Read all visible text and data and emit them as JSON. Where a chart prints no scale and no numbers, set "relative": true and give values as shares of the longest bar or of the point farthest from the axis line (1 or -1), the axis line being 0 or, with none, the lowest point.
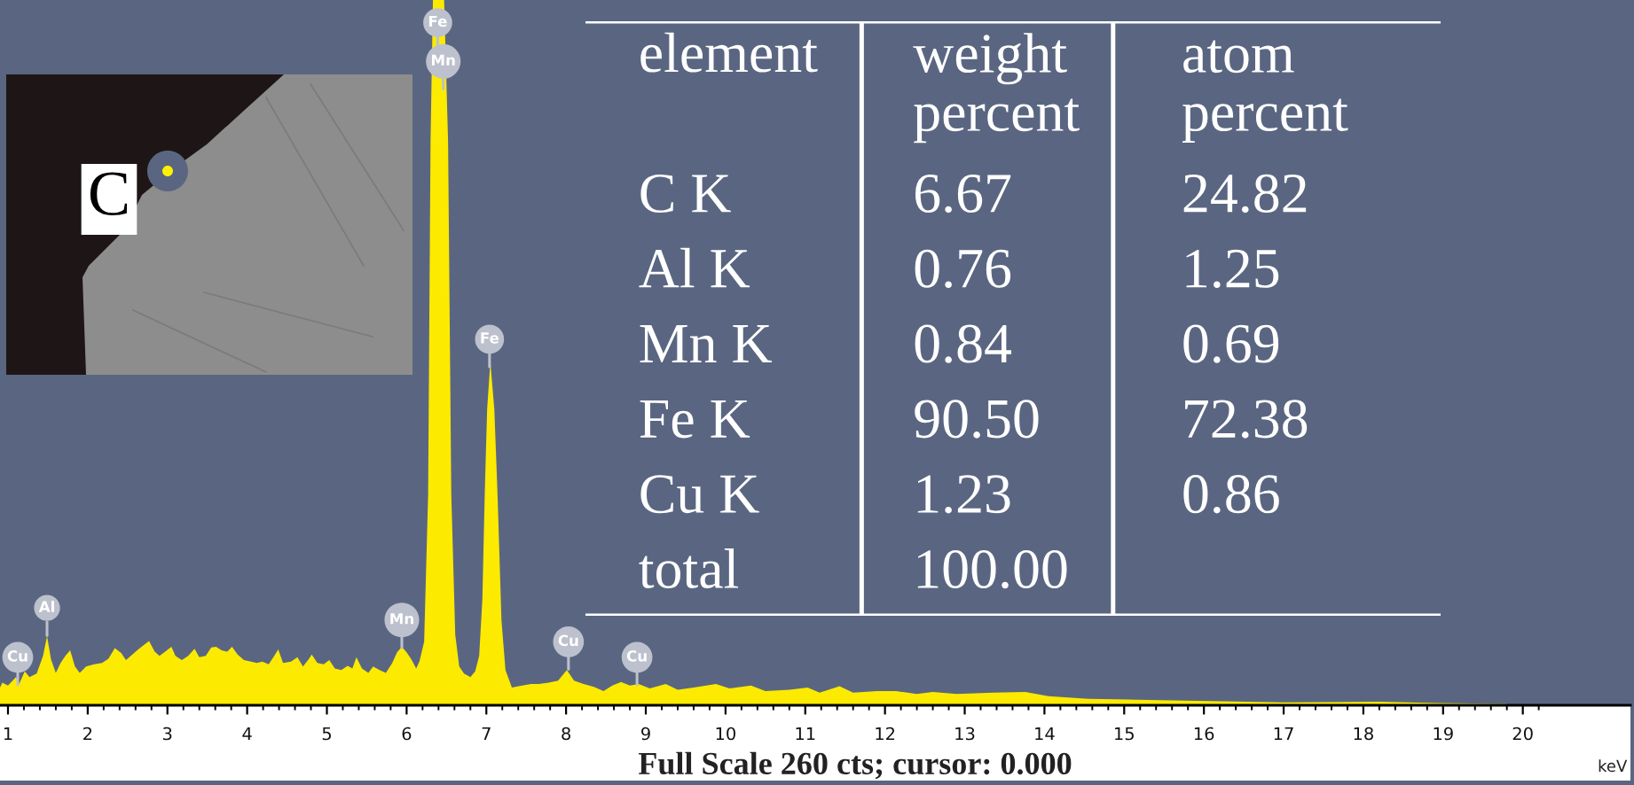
{
  "chart_data": [
    {
      "type": "area",
      "relative": true,
      "color": "#fcea00",
      "xlabel": "keV",
      "xlim": [
        0.9,
        21.35
      ],
      "xticks": [
        1,
        {
          "value": 1.2,
          "label": null
        },
        {
          "value": 1.4,
          "label": null
        },
        {
          "value": 1.6,
          "label": null
        },
        {
          "value": 1.8,
          "label": null
        },
        2,
        {
          "value": 2.2,
          "label": null
        },
        {
          "value": 2.4,
          "label": null
        },
        {
          "value": 2.6,
          "label": null
        },
        {
          "value": 2.8,
          "label": null
        },
        3,
        {
          "value": 3.2,
          "label": null
        },
        {
          "value": 3.4,
          "label": null
        },
        {
          "value": 3.6,
          "label": null
        },
        {
          "value": 3.8,
          "label": null
        },
        4,
        {
          "value": 4.2,
          "label": null
        },
        {
          "value": 4.4,
          "label": null
        },
        {
          "value": 4.6,
          "label": null
        },
        {
          "value": 4.8,
          "label": null
        },
        5,
        {
          "value": 5.2,
          "label": null
        },
        {
          "value": 5.4,
          "label": null
        },
        {
          "value": 5.6,
          "label": null
        },
        {
          "value": 5.8,
          "label": null
        },
        6,
        {
          "value": 6.2,
          "label": null
        },
        {
          "value": 6.4,
          "label": null
        },
        {
          "value": 6.6,
          "label": null
        },
        {
          "value": 6.8,
          "label": null
        },
        7,
        {
          "value": 7.2,
          "label": null
        },
        {
          "value": 7.4,
          "label": null
        },
        {
          "value": 7.6,
          "label": null
        },
        {
          "value": 7.8,
          "label": null
        },
        8,
        {
          "value": 8.2,
          "label": null
        },
        {
          "value": 8.4,
          "label": null
        },
        {
          "value": 8.6,
          "label": null
        },
        {
          "value": 8.8,
          "label": null
        },
        9,
        {
          "value": 9.2,
          "label": null
        },
        {
          "value": 9.4,
          "label": null
        },
        {
          "value": 9.6,
          "label": null
        },
        {
          "value": 9.8,
          "label": null
        },
        10,
        {
          "value": 10.2,
          "label": null
        },
        {
          "value": 10.4,
          "label": null
        },
        {
          "value": 10.6,
          "label": null
        },
        {
          "value": 10.8,
          "label": null
        },
        11,
        {
          "value": 11.2,
          "label": null
        },
        {
          "value": 11.4,
          "label": null
        },
        {
          "value": 11.6,
          "label": null
        },
        {
          "value": 11.8,
          "label": null
        },
        12,
        {
          "value": 12.2,
          "label": null
        },
        {
          "value": 12.4,
          "label": null
        },
        {
          "value": 12.6,
          "label": null
        },
        {
          "value": 12.8,
          "label": null
        },
        13,
        {
          "value": 13.2,
          "label": null
        },
        {
          "value": 13.4,
          "label": null
        },
        {
          "value": 13.6,
          "label": null
        },
        {
          "value": 13.8,
          "label": null
        },
        14,
        {
          "value": 14.2,
          "label": null
        },
        {
          "value": 14.4,
          "label": null
        },
        {
          "value": 14.6,
          "label": null
        },
        {
          "value": 14.8,
          "label": null
        },
        15,
        {
          "value": 15.2,
          "label": null
        },
        {
          "value": 15.4,
          "label": null
        },
        {
          "value": 15.6,
          "label": null
        },
        {
          "value": 15.8,
          "label": null
        },
        16,
        {
          "value": 16.2,
          "label": null
        },
        {
          "value": 16.4,
          "label": null
        },
        {
          "value": 16.6,
          "label": null
        },
        {
          "value": 16.8,
          "label": null
        },
        17,
        {
          "value": 17.2,
          "label": null
        },
        {
          "value": 17.4,
          "label": null
        },
        {
          "value": 17.6,
          "label": null
        },
        {
          "value": 17.8,
          "label": null
        },
        18,
        {
          "value": 18.2,
          "label": null
        },
        {
          "value": 18.4,
          "label": null
        },
        {
          "value": 18.6,
          "label": null
        },
        {
          "value": 18.8,
          "label": null
        },
        19,
        {
          "value": 19.2,
          "label": null
        },
        {
          "value": 19.4,
          "label": null
        },
        {
          "value": 19.6,
          "label": null
        },
        {
          "value": 19.8,
          "label": null
        },
        20,
        {
          "value": 20.2,
          "label": null
        }
      ],
      "x": [
        0.9,
        0.93,
        1.0,
        1.1,
        1.14,
        1.21,
        1.27,
        1.36,
        1.44,
        1.49,
        1.54,
        1.6,
        1.66,
        1.72,
        1.78,
        1.84,
        1.9,
        1.98,
        2.08,
        2.18,
        2.26,
        2.34,
        2.42,
        2.48,
        2.56,
        2.62,
        2.7,
        2.77,
        2.84,
        2.9,
        2.96,
        3.05,
        3.1,
        3.18,
        3.26,
        3.34,
        3.4,
        3.48,
        3.55,
        3.61,
        3.68,
        3.75,
        3.81,
        3.88,
        3.96,
        4.05,
        4.12,
        4.19,
        4.27,
        4.34,
        4.39,
        4.45,
        4.55,
        4.63,
        4.7,
        4.77,
        4.81,
        4.88,
        4.96,
        5.03,
        5.1,
        5.18,
        5.26,
        5.32,
        5.37,
        5.44,
        5.52,
        5.58,
        5.66,
        5.74,
        5.82,
        5.88,
        5.94,
        6.0,
        6.06,
        6.12,
        6.16,
        6.22,
        6.27,
        6.3,
        6.33,
        6.4,
        6.47,
        6.52,
        6.56,
        6.61,
        6.66,
        6.72,
        6.8,
        6.86,
        6.91,
        6.95,
        6.98,
        7.01,
        7.05,
        7.1,
        7.14,
        7.19,
        7.24,
        7.32,
        7.45,
        7.56,
        7.66,
        7.78,
        7.9,
        8.01,
        8.1,
        8.22,
        8.35,
        8.47,
        8.58,
        8.69,
        8.8,
        8.91,
        9.05,
        9.25,
        9.4,
        9.6,
        9.88,
        10.05,
        10.32,
        10.5,
        10.8,
        11.03,
        11.18,
        11.43,
        11.6,
        11.9,
        12.14,
        12.4,
        12.6,
        12.9,
        13.36,
        13.76,
        14.05,
        14.55,
        15.15,
        16.07,
        17.0,
        18.2,
        18.9,
        19.8
      ],
      "values": [
        0.025,
        0.032,
        0.028,
        0.04,
        0.03,
        0.048,
        0.04,
        0.045,
        0.07,
        0.098,
        0.065,
        0.046,
        0.06,
        0.07,
        0.078,
        0.055,
        0.046,
        0.055,
        0.058,
        0.06,
        0.066,
        0.081,
        0.074,
        0.064,
        0.072,
        0.078,
        0.085,
        0.091,
        0.076,
        0.07,
        0.075,
        0.083,
        0.07,
        0.064,
        0.07,
        0.08,
        0.068,
        0.07,
        0.082,
        0.083,
        0.078,
        0.076,
        0.083,
        0.072,
        0.064,
        0.062,
        0.06,
        0.062,
        0.058,
        0.07,
        0.079,
        0.06,
        0.062,
        0.068,
        0.055,
        0.065,
        0.072,
        0.06,
        0.058,
        0.064,
        0.052,
        0.05,
        0.056,
        0.052,
        0.068,
        0.052,
        0.046,
        0.055,
        0.05,
        0.046,
        0.06,
        0.075,
        0.083,
        0.075,
        0.065,
        0.052,
        0.062,
        0.09,
        0.3,
        0.8,
        1.0,
        1.0,
        1.0,
        0.8,
        0.3,
        0.1,
        0.055,
        0.045,
        0.04,
        0.048,
        0.07,
        0.15,
        0.3,
        0.42,
        0.487,
        0.42,
        0.3,
        0.12,
        0.05,
        0.025,
        0.028,
        0.03,
        0.03,
        0.032,
        0.035,
        0.05,
        0.035,
        0.03,
        0.026,
        0.02,
        0.028,
        0.033,
        0.028,
        0.03,
        0.024,
        0.03,
        0.022,
        0.025,
        0.03,
        0.024,
        0.028,
        0.02,
        0.022,
        0.025,
        0.018,
        0.027,
        0.018,
        0.02,
        0.02,
        0.016,
        0.019,
        0.016,
        0.018,
        0.019,
        0.013,
        0.009,
        0.008,
        0.006,
        0.004,
        0.005,
        0.003,
        0.002
      ],
      "annotations": [
        {
          "text": "Al",
          "x": 1.49,
          "y": 0.138
        },
        {
          "text": "Mn",
          "x": 5.94,
          "y": 0.121
        },
        {
          "text": "Fe",
          "x": 6.39,
          "y": 0.968
        },
        {
          "text": "Mn",
          "x": 6.46,
          "y": 0.913
        },
        {
          "text": "Fe",
          "x": 7.04,
          "y": 0.519
        },
        {
          "text": "Cu",
          "x": 8.03,
          "y": 0.09
        },
        {
          "text": "Cu",
          "x": 8.89,
          "y": 0.068
        },
        "Cu",
        "C",
        "Full Scale 260 cts; cursor: 0.000"
      ]
    },
    {
      "type": "other",
      "ylabel": "element",
      "categories": [
        "weight\npercent",
        "atom\npercent"
      ],
      "y_categories": [
        "C K",
        "Al K",
        "Mn K",
        "Fe K",
        "Cu K",
        "total"
      ],
      "cell_labels": [
        [
          "6.67",
          "24.82"
        ],
        [
          "0.76",
          "1.25"
        ],
        [
          "0.84",
          "0.69"
        ],
        [
          "90.50",
          "72.38"
        ],
        [
          "1.23",
          "0.86"
        ],
        [
          "100.00",
          null
        ]
      ]
    }
  ]
}
